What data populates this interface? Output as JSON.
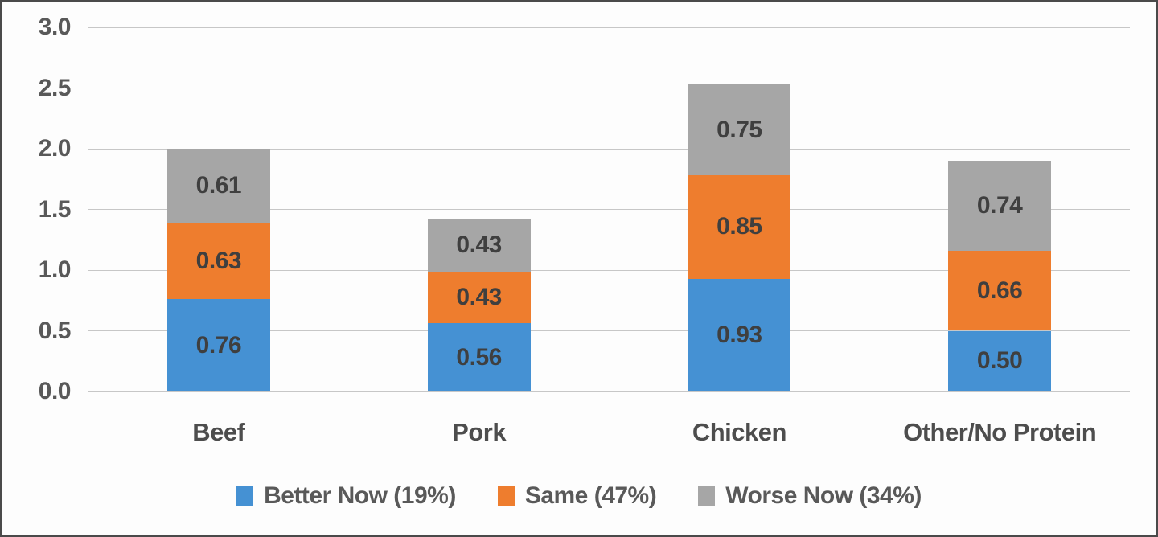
{
  "chart_data": {
    "type": "bar",
    "stacked": true,
    "title": "",
    "xlabel": "",
    "ylabel": "",
    "categories": [
      "Beef",
      "Pork",
      "Chicken",
      "Other/No Protein"
    ],
    "series": [
      {
        "name": "Better Now (19%)",
        "color": "#4591d3",
        "values": [
          0.76,
          0.56,
          0.93,
          0.5
        ]
      },
      {
        "name": "Same (47%)",
        "color": "#ee7d2e",
        "values": [
          0.63,
          0.43,
          0.85,
          0.66
        ]
      },
      {
        "name": "Worse Now (34%)",
        "color": "#a6a6a6",
        "values": [
          0.61,
          0.43,
          0.75,
          0.74
        ]
      }
    ],
    "stack_totals": [
      2.0,
      1.42,
      2.53,
      1.9
    ],
    "ylim": [
      0,
      3
    ],
    "yticks": [
      0.0,
      0.5,
      1.0,
      1.5,
      2.0,
      2.5,
      3.0
    ],
    "grid": true,
    "legend_position": "bottom"
  },
  "colors": {
    "background": "#fdfdfd",
    "frame_border": "#4a4a4a",
    "gridline": "#c7c7c7",
    "axis_label_text": "#595959",
    "data_label_text": "#3f3f3f",
    "category_label_text": "#4d4d4d",
    "legend_text": "#595959",
    "series_blue": "#4591d3",
    "series_orange": "#ee7d2e",
    "series_gray": "#a6a6a6"
  }
}
